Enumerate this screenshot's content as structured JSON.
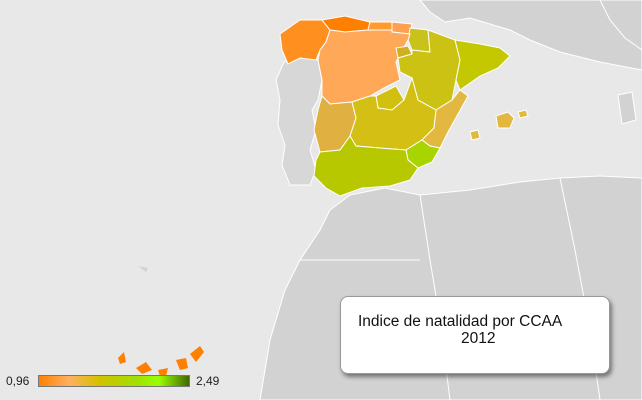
{
  "title": {
    "line1": "Indice de natalidad por CCAA",
    "line2": "2012"
  },
  "legend": {
    "min_label": "0,96",
    "max_label": "2,49",
    "min_value": 0.96,
    "max_value": 2.49,
    "gradient_colors": [
      "#ff8000",
      "#ffb060",
      "#c8c800",
      "#a0e000",
      "#99ff00",
      "#407000"
    ]
  },
  "colors": {
    "sea": "#e8e8e8",
    "land": "#d2d2d2",
    "portugal": "#d7d7d7",
    "border": "#ffffff"
  }
}
